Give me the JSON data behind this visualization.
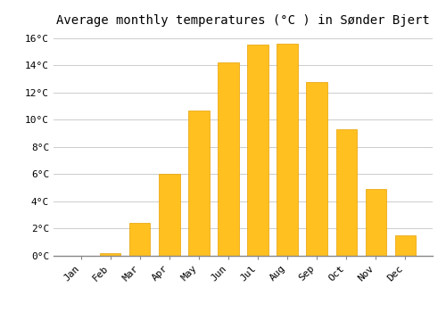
{
  "title": "Average monthly temperatures (°C ) in Sønder Bjert",
  "months": [
    "Jan",
    "Feb",
    "Mar",
    "Apr",
    "May",
    "Jun",
    "Jul",
    "Aug",
    "Sep",
    "Oct",
    "Nov",
    "Dec"
  ],
  "values": [
    0.0,
    0.2,
    2.4,
    6.0,
    10.7,
    14.2,
    15.5,
    15.6,
    12.8,
    9.3,
    4.9,
    1.5
  ],
  "bar_color": "#FFC020",
  "bar_edge_color": "#E8A000",
  "ylim": [
    0,
    16.5
  ],
  "yticks": [
    0,
    2,
    4,
    6,
    8,
    10,
    12,
    14,
    16
  ],
  "ytick_labels": [
    "0°C",
    "2°C",
    "4°C",
    "6°C",
    "8°C",
    "10°C",
    "12°C",
    "14°C",
    "16°C"
  ],
  "background_color": "#ffffff",
  "grid_color": "#cccccc",
  "title_fontsize": 10,
  "tick_fontsize": 8,
  "bar_width": 0.7
}
